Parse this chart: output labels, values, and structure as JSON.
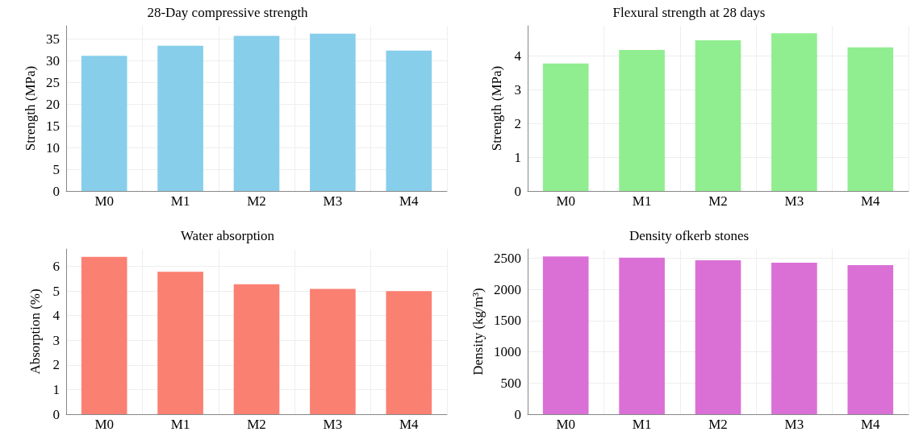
{
  "chart_data": [
    {
      "type": "bar",
      "title": "28-Day compressive strength",
      "ylabel": "Strength (MPa)",
      "categories": [
        "M0",
        "M1",
        "M2",
        "M3",
        "M4"
      ],
      "values": [
        31.1,
        33.4,
        35.7,
        36.2,
        32.3
      ],
      "color": "#87ceeb",
      "ylim": [
        0,
        38
      ],
      "yticks": [
        0,
        5,
        10,
        15,
        20,
        25,
        30,
        35
      ],
      "grid": true
    },
    {
      "type": "bar",
      "title": "Flexural strength at 28 days",
      "ylabel": "Strength (MPa)",
      "categories": [
        "M0",
        "M1",
        "M2",
        "M3",
        "M4"
      ],
      "values": [
        3.78,
        4.18,
        4.47,
        4.68,
        4.26
      ],
      "color": "#90ee90",
      "ylim": [
        0,
        4.9
      ],
      "yticks": [
        0,
        1,
        2,
        3,
        4
      ],
      "grid": true
    },
    {
      "type": "bar",
      "title": "Water absorption",
      "ylabel": "Absorption (%)",
      "categories": [
        "M0",
        "M1",
        "M2",
        "M3",
        "M4"
      ],
      "values": [
        6.38,
        5.78,
        5.27,
        5.08,
        4.99
      ],
      "color": "#fa8072",
      "ylim": [
        0,
        6.7
      ],
      "yticks": [
        0,
        1,
        2,
        3,
        4,
        5,
        6
      ],
      "grid": true
    },
    {
      "type": "bar",
      "title": "Density ofkerb stones",
      "ylabel": "Density (kg/m³)",
      "categories": [
        "M0",
        "M1",
        "M2",
        "M3",
        "M4"
      ],
      "values": [
        2530,
        2510,
        2470,
        2430,
        2390
      ],
      "color": "#da70d6",
      "ylim": [
        0,
        2650
      ],
      "yticks": [
        0,
        500,
        1000,
        1500,
        2000,
        2500
      ],
      "grid": true
    }
  ]
}
